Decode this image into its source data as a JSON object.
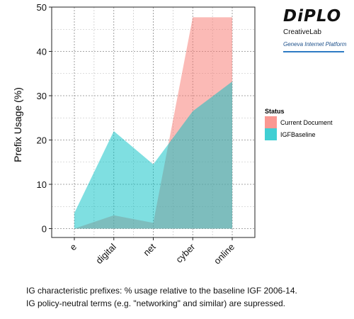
{
  "chart_data": {
    "type": "area",
    "categories": [
      "e",
      "digital",
      "net",
      "cyber",
      "online"
    ],
    "series": [
      {
        "name": "Current Document",
        "values": [
          0,
          3,
          1.3,
          47.7,
          47.7
        ],
        "color": "#f8766d"
      },
      {
        "name": "IGFBaseline",
        "values": [
          3.5,
          22,
          14.5,
          26.5,
          33.2
        ],
        "color": "#00bfc4"
      }
    ],
    "title": "",
    "xlabel": "",
    "ylabel": "Prefix Usage (%)",
    "ylim": [
      -2,
      50
    ],
    "yticks": [
      0,
      10,
      20,
      30,
      40,
      50
    ],
    "grid": true,
    "legend": {
      "title": "Status",
      "placement": "right"
    }
  },
  "logo": {
    "name": "DiPLO",
    "sub": "CreativeLab",
    "platform": "Geneva Internet Platform"
  },
  "caption": {
    "line1": "IG characteristic prefixes: % usage relative to the baseline IGF 2006-14.",
    "line2": "IG policy-neutral terms (e.g. \"networking\" and similar) are supressed."
  }
}
